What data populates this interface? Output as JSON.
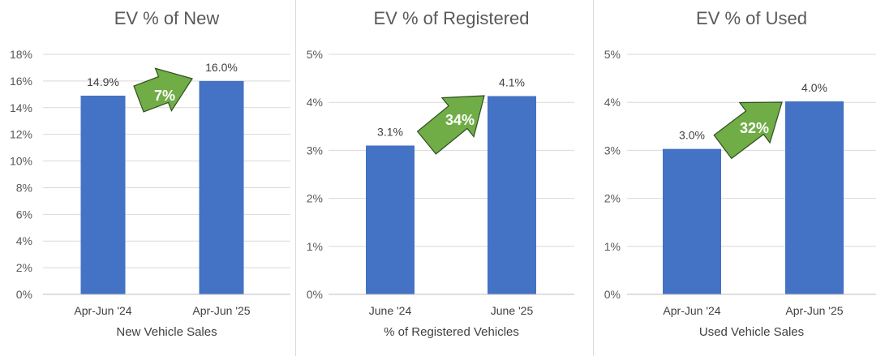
{
  "chart_data": [
    {
      "type": "bar",
      "title": "EV % of New",
      "xlabel": "New Vehicle Sales",
      "ylabel": "",
      "categories": [
        "Apr-Jun '24",
        "Apr-Jun '25"
      ],
      "values": [
        14.9,
        16.0
      ],
      "data_labels": [
        "14.9%",
        "16.0%"
      ],
      "ylim": [
        0,
        18
      ],
      "yticks": [
        0,
        2,
        4,
        6,
        8,
        10,
        12,
        14,
        16,
        18
      ],
      "ytick_labels": [
        "0%",
        "2%",
        "4%",
        "6%",
        "8%",
        "10%",
        "12%",
        "14%",
        "16%",
        "18%"
      ],
      "grid": true,
      "bar_color": "#4472C4",
      "annotation": {
        "label": "7%",
        "color": "#70AD47"
      }
    },
    {
      "type": "bar",
      "title": "EV % of Registered",
      "xlabel": "% of Registered Vehicles",
      "ylabel": "",
      "categories": [
        "June '24",
        "June '25"
      ],
      "values": [
        3.1,
        4.13
      ],
      "data_labels": [
        "3.1%",
        "4.1%"
      ],
      "ylim": [
        0,
        5
      ],
      "yticks": [
        0,
        1,
        2,
        3,
        4,
        5
      ],
      "ytick_labels": [
        "0%",
        "1%",
        "2%",
        "3%",
        "4%",
        "5%"
      ],
      "grid": true,
      "bar_color": "#4472C4",
      "annotation": {
        "label": "34%",
        "color": "#70AD47"
      }
    },
    {
      "type": "bar",
      "title": "EV % of Used",
      "xlabel": "Used Vehicle Sales",
      "ylabel": "",
      "categories": [
        "Apr-Jun '24",
        "Apr-Jun '25"
      ],
      "values": [
        3.03,
        4.02
      ],
      "data_labels": [
        "3.0%",
        "4.0%"
      ],
      "ylim": [
        0,
        5
      ],
      "yticks": [
        0,
        1,
        2,
        3,
        4,
        5
      ],
      "ytick_labels": [
        "0%",
        "1%",
        "2%",
        "3%",
        "4%",
        "5%"
      ],
      "grid": true,
      "bar_color": "#4472C4",
      "annotation": {
        "label": "32%",
        "color": "#70AD47"
      }
    }
  ]
}
